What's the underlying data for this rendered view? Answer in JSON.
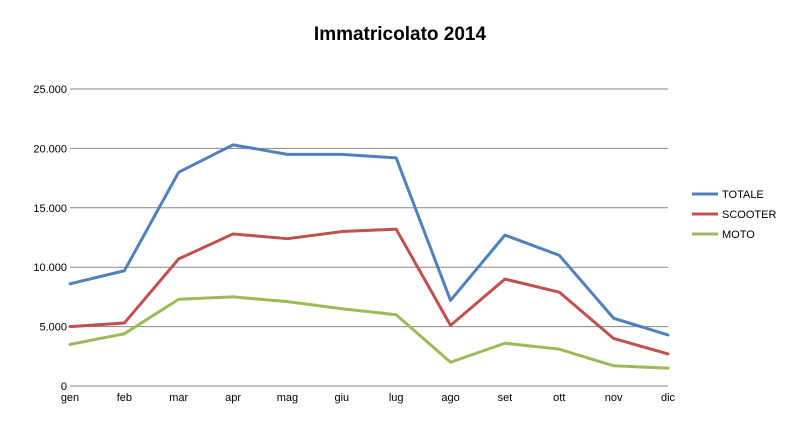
{
  "chart_data": {
    "type": "line",
    "title": "Immatricolato 2014",
    "xlabel": "",
    "ylabel": "",
    "categories": [
      "gen",
      "feb",
      "mar",
      "apr",
      "mag",
      "giu",
      "lug",
      "ago",
      "set",
      "ott",
      "nov",
      "dic"
    ],
    "ylim": [
      0,
      25000
    ],
    "yticks": [
      0,
      5000,
      10000,
      15000,
      20000,
      25000
    ],
    "ytick_labels": [
      "0",
      "5.000",
      "10.000",
      "15.000",
      "20.000",
      "25.000"
    ],
    "grid": true,
    "legend_position": "right",
    "series": [
      {
        "name": "TOTALE",
        "color": "#4f81bd",
        "values": [
          8600,
          9700,
          18000,
          20300,
          19500,
          19500,
          19200,
          7200,
          12700,
          11000,
          5700,
          4300
        ]
      },
      {
        "name": "SCOOTER",
        "color": "#c0504d",
        "values": [
          5000,
          5300,
          10700,
          12800,
          12400,
          13000,
          13200,
          5100,
          9000,
          7900,
          4000,
          2700
        ]
      },
      {
        "name": "MOTO",
        "color": "#9bbb59",
        "values": [
          3500,
          4400,
          7300,
          7500,
          7100,
          6500,
          6000,
          2000,
          3600,
          3100,
          1700,
          1500
        ]
      }
    ]
  }
}
